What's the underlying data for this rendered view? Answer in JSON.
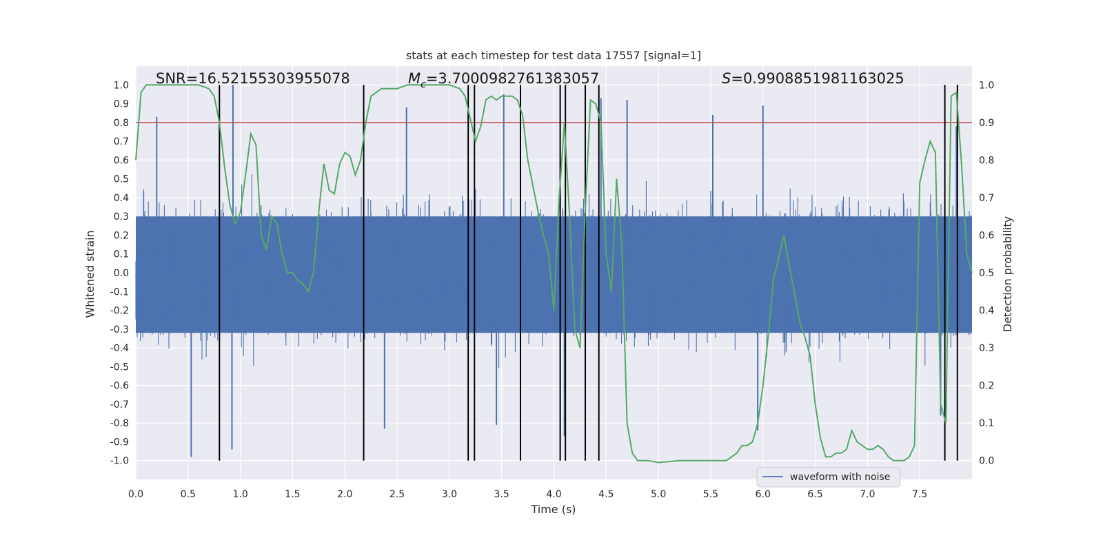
{
  "chart_data": {
    "type": "line",
    "title": "stats at each timestep for test data 17557 [signal=1]",
    "xlabel": "Time (s)",
    "ylabel_left": "Whitened strain",
    "ylabel_right": "Detection probability",
    "xlim": [
      0.0,
      8.0
    ],
    "ylim_left": [
      -1.1,
      1.1
    ],
    "ylim_right": [
      -0.05,
      1.05
    ],
    "x_ticks": [
      "0.0",
      "0.5",
      "1.0",
      "1.5",
      "2.0",
      "2.5",
      "3.0",
      "3.5",
      "4.0",
      "4.5",
      "5.0",
      "5.5",
      "6.0",
      "6.5",
      "7.0",
      "7.5"
    ],
    "y_ticks_left": [
      "1.0",
      "0.9",
      "0.8",
      "0.7",
      "0.6",
      "0.5",
      "0.4",
      "0.3",
      "0.2",
      "0.1",
      "0.0",
      "-0.1",
      "-0.2",
      "-0.3",
      "-0.4",
      "-0.5",
      "-0.6",
      "-0.7",
      "-0.8",
      "-0.9",
      "-1.0"
    ],
    "y_ticks_right": [
      "1.0",
      "0.9",
      "0.8",
      "0.7",
      "0.6",
      "0.5",
      "0.4",
      "0.3",
      "0.2",
      "0.1",
      "0.0"
    ],
    "grid": true,
    "legend": {
      "position": "lower-right",
      "entries": [
        "waveform with noise"
      ]
    },
    "annotations": {
      "snr": "SNR=16.52155303955078",
      "mc_symbol": "M",
      "mc_sub": "c",
      "mc_value": "=3.7000982761383057",
      "s_symbol": "S",
      "s_value": "=0.9908851981163025"
    },
    "threshold": {
      "value": 0.8,
      "axis": "left",
      "color": "#c44e52"
    },
    "vertical_lines": [
      0.8,
      2.18,
      3.18,
      3.24,
      3.68,
      4.06,
      4.11,
      4.3,
      4.43,
      7.74,
      7.86
    ],
    "series": [
      {
        "name": "waveform with noise",
        "color": "#4c72b0",
        "axis": "left",
        "kind": "noise",
        "x_range": [
          0.0,
          8.0
        ],
        "core_amplitude": 0.3,
        "extremes": [
          {
            "x": 0.53,
            "y": -0.98
          },
          {
            "x": 0.92,
            "y": -0.94
          },
          {
            "x": 0.93,
            "y": 1.0
          },
          {
            "x": 0.2,
            "y": 0.83
          },
          {
            "x": 2.38,
            "y": -0.83
          },
          {
            "x": 2.59,
            "y": 0.88
          },
          {
            "x": 3.52,
            "y": 0.95
          },
          {
            "x": 3.45,
            "y": -0.81
          },
          {
            "x": 4.1,
            "y": -0.87
          },
          {
            "x": 4.45,
            "y": 0.93
          },
          {
            "x": 4.7,
            "y": 0.92
          },
          {
            "x": 5.52,
            "y": 0.84
          },
          {
            "x": 5.95,
            "y": -0.84
          },
          {
            "x": 6.0,
            "y": 0.89
          },
          {
            "x": 7.7,
            "y": -0.76
          },
          {
            "x": 7.85,
            "y": 0.78
          }
        ]
      },
      {
        "name": "",
        "color": "#55a868",
        "axis": "right",
        "kind": "line",
        "x": [
          0.0,
          0.05,
          0.1,
          0.2,
          0.3,
          0.4,
          0.5,
          0.6,
          0.7,
          0.75,
          0.8,
          0.85,
          0.9,
          0.95,
          1.0,
          1.05,
          1.1,
          1.15,
          1.2,
          1.25,
          1.3,
          1.35,
          1.4,
          1.45,
          1.5,
          1.55,
          1.6,
          1.65,
          1.7,
          1.75,
          1.8,
          1.85,
          1.9,
          1.95,
          2.0,
          2.05,
          2.1,
          2.15,
          2.2,
          2.25,
          2.3,
          2.35,
          2.4,
          2.5,
          2.6,
          2.7,
          2.8,
          2.9,
          3.0,
          3.1,
          3.15,
          3.2,
          3.25,
          3.3,
          3.35,
          3.4,
          3.45,
          3.5,
          3.55,
          3.6,
          3.65,
          3.7,
          3.75,
          3.8,
          3.85,
          3.9,
          3.95,
          4.0,
          4.05,
          4.1,
          4.15,
          4.2,
          4.25,
          4.3,
          4.35,
          4.4,
          4.45,
          4.5,
          4.55,
          4.6,
          4.65,
          4.7,
          4.75,
          4.8,
          4.9,
          5.0,
          5.2,
          5.4,
          5.5,
          5.6,
          5.65,
          5.7,
          5.75,
          5.8,
          5.85,
          5.9,
          5.95,
          6.0,
          6.05,
          6.1,
          6.15,
          6.2,
          6.25,
          6.3,
          6.35,
          6.4,
          6.45,
          6.5,
          6.55,
          6.6,
          6.65,
          6.7,
          6.75,
          6.8,
          6.85,
          6.9,
          6.95,
          7.0,
          7.05,
          7.1,
          7.15,
          7.2,
          7.25,
          7.3,
          7.35,
          7.4,
          7.45,
          7.5,
          7.55,
          7.6,
          7.65,
          7.7,
          7.75,
          7.8,
          7.85,
          7.9,
          7.95,
          8.0
        ],
        "values": [
          0.8,
          0.98,
          1.0,
          1.0,
          1.0,
          1.0,
          1.0,
          1.0,
          0.99,
          0.97,
          0.9,
          0.78,
          0.68,
          0.63,
          0.66,
          0.76,
          0.87,
          0.84,
          0.6,
          0.56,
          0.65,
          0.63,
          0.55,
          0.5,
          0.5,
          0.48,
          0.47,
          0.45,
          0.5,
          0.66,
          0.79,
          0.72,
          0.71,
          0.79,
          0.82,
          0.81,
          0.76,
          0.8,
          0.9,
          0.97,
          0.98,
          0.99,
          0.99,
          0.99,
          1.0,
          1.0,
          1.0,
          1.0,
          1.0,
          0.99,
          0.97,
          0.91,
          0.85,
          0.89,
          0.96,
          0.97,
          0.96,
          0.97,
          0.97,
          0.97,
          0.96,
          0.92,
          0.8,
          0.73,
          0.66,
          0.6,
          0.55,
          0.4,
          0.7,
          0.9,
          0.65,
          0.35,
          0.3,
          0.67,
          0.96,
          0.95,
          0.9,
          0.55,
          0.45,
          0.75,
          0.57,
          0.1,
          0.02,
          0.0,
          0.0,
          -0.005,
          0.0,
          0.0,
          0.0,
          0.0,
          0.0,
          0.01,
          0.02,
          0.04,
          0.04,
          0.05,
          0.1,
          0.2,
          0.33,
          0.48,
          0.54,
          0.6,
          0.52,
          0.45,
          0.37,
          0.33,
          0.28,
          0.15,
          0.06,
          0.01,
          0.01,
          0.02,
          0.02,
          0.03,
          0.08,
          0.05,
          0.04,
          0.03,
          0.03,
          0.04,
          0.03,
          0.01,
          0.0,
          0.0,
          0.0,
          0.01,
          0.04,
          0.74,
          0.8,
          0.85,
          0.82,
          0.15,
          0.1,
          0.97,
          0.98,
          0.79,
          0.55,
          0.5
        ]
      }
    ]
  }
}
